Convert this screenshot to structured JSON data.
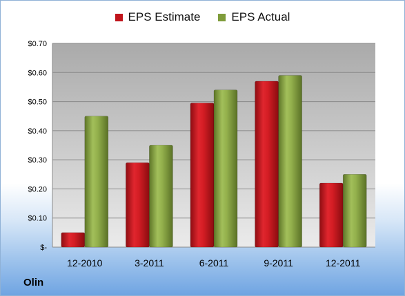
{
  "chart_data": {
    "type": "bar",
    "title": "",
    "xlabel": "",
    "ylabel": "",
    "categories": [
      "12-2010",
      "3-2011",
      "6-2011",
      "9-2011",
      "12-2011"
    ],
    "series": [
      {
        "name": "EPS Estimate",
        "values": [
          0.05,
          0.29,
          0.495,
          0.57,
          0.22
        ],
        "color": "#c0141b"
      },
      {
        "name": "EPS Actual",
        "values": [
          0.45,
          0.35,
          0.54,
          0.59,
          0.25
        ],
        "color": "#7f9c3b"
      }
    ],
    "ylim": [
      0,
      0.7
    ],
    "yticks": [
      0,
      0.1,
      0.2,
      0.3,
      0.4,
      0.5,
      0.6,
      0.7
    ],
    "ytick_labels": [
      "$-",
      "$0.10",
      "$0.20",
      "$0.30",
      "$0.40",
      "$0.50",
      "$0.60",
      "$0.70"
    ],
    "legend_position": "top",
    "grid": true
  },
  "company": "Olin"
}
